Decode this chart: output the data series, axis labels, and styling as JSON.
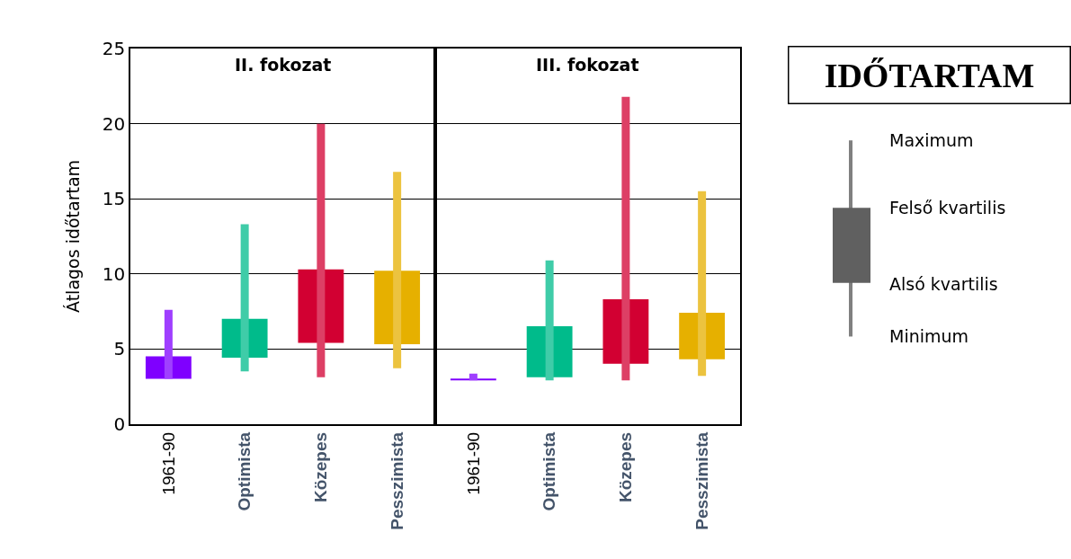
{
  "chart_data": [
    {
      "type": "box",
      "title": "II. fokozat",
      "ylabel": "Átlagos időtartam",
      "categories": [
        "1961-90",
        "Optimista",
        "Közepes",
        "Pesszimista"
      ],
      "boxes": [
        {
          "low": 3.0,
          "q1": 3.0,
          "q3": 4.5,
          "high": 7.6
        },
        {
          "low": 3.5,
          "q1": 4.4,
          "q3": 7.0,
          "high": 13.3
        },
        {
          "low": 3.1,
          "q1": 5.4,
          "q3": 10.3,
          "high": 20.0
        },
        {
          "low": 3.7,
          "q1": 5.3,
          "q3": 10.2,
          "high": 16.8
        }
      ],
      "colors": [
        "#7f00ff",
        "#00bb8b",
        "#d20032",
        "#e6b000"
      ],
      "ylim": [
        0,
        25
      ],
      "yticks": [
        0,
        5,
        10,
        15,
        20,
        25
      ],
      "grid": "y"
    },
    {
      "type": "box",
      "title": "III. fokozat",
      "categories": [
        "1961-90",
        "Optimista",
        "Közepes",
        "Pesszimista"
      ],
      "boxes": [
        {
          "low": 2.9,
          "q1": 2.9,
          "q3": 3.0,
          "high": 3.35
        },
        {
          "low": 2.9,
          "q1": 3.1,
          "q3": 6.5,
          "high": 10.9
        },
        {
          "low": 2.9,
          "q1": 4.0,
          "q3": 8.3,
          "high": 21.8
        },
        {
          "low": 3.2,
          "q1": 4.3,
          "q3": 7.4,
          "high": 15.5
        }
      ],
      "colors": [
        "#7f00ff",
        "#00bb8b",
        "#d20032",
        "#e6b000"
      ],
      "ylim": [
        0,
        25
      ],
      "yticks": [
        0,
        5,
        10,
        15,
        20,
        25
      ],
      "grid": "y",
      "tick_labels": "x"
    },
    {
      "type": "other",
      "title": "IDŐTARTAM",
      "annotations": [
        "Maximum",
        "Felső kvartilis",
        "Alsó kvartilis",
        "Minimum"
      ]
    }
  ]
}
